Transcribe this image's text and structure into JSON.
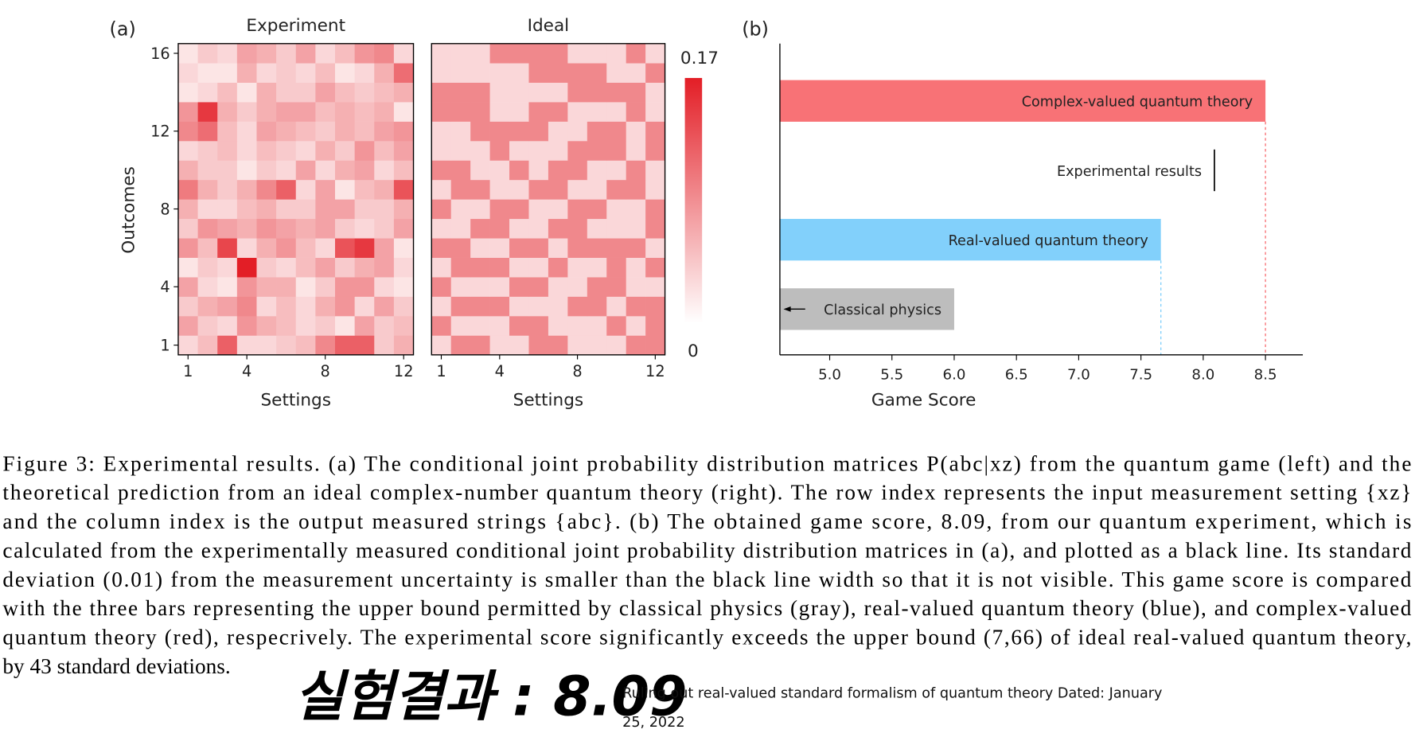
{
  "chart_data": [
    {
      "type": "heatmap",
      "panel_label": "(a)",
      "title": "Experiment",
      "xlabel": "Settings",
      "ylabel": "Outcomes",
      "xlim": [
        0.5,
        12.5
      ],
      "ylim": [
        0.5,
        16.5
      ],
      "xticks": [
        1,
        4,
        8,
        12
      ],
      "yticks": [
        1,
        4,
        8,
        12,
        16
      ],
      "clim": [
        0,
        0.17
      ],
      "cmap": [
        "#ffffff",
        "#e31e26"
      ],
      "values": [
        [
          0.03,
          0.05,
          0.12,
          0.03,
          0.03,
          0.04,
          0.05,
          0.09,
          0.12,
          0.12,
          0.04,
          0.06
        ],
        [
          0.07,
          0.04,
          0.03,
          0.08,
          0.06,
          0.05,
          0.03,
          0.04,
          0.02,
          0.07,
          0.04,
          0.05
        ],
        [
          0.04,
          0.06,
          0.07,
          0.09,
          0.03,
          0.05,
          0.03,
          0.06,
          0.08,
          0.03,
          0.07,
          0.04
        ],
        [
          0.07,
          0.03,
          0.02,
          0.08,
          0.06,
          0.06,
          0.02,
          0.04,
          0.08,
          0.08,
          0.03,
          0.02
        ],
        [
          0.02,
          0.04,
          0.03,
          0.17,
          0.04,
          0.03,
          0.05,
          0.07,
          0.04,
          0.06,
          0.07,
          0.03
        ],
        [
          0.08,
          0.05,
          0.14,
          0.03,
          0.06,
          0.08,
          0.05,
          0.03,
          0.13,
          0.15,
          0.07,
          0.02
        ],
        [
          0.04,
          0.08,
          0.07,
          0.06,
          0.08,
          0.07,
          0.06,
          0.07,
          0.04,
          0.03,
          0.04,
          0.07
        ],
        [
          0.06,
          0.03,
          0.03,
          0.05,
          0.06,
          0.04,
          0.04,
          0.07,
          0.07,
          0.04,
          0.04,
          0.06
        ],
        [
          0.1,
          0.06,
          0.04,
          0.06,
          0.09,
          0.12,
          0.03,
          0.07,
          0.02,
          0.05,
          0.06,
          0.13
        ],
        [
          0.06,
          0.04,
          0.04,
          0.02,
          0.04,
          0.03,
          0.07,
          0.03,
          0.06,
          0.07,
          0.03,
          0.05
        ],
        [
          0.03,
          0.04,
          0.05,
          0.03,
          0.05,
          0.04,
          0.03,
          0.06,
          0.04,
          0.08,
          0.05,
          0.07
        ],
        [
          0.09,
          0.11,
          0.05,
          0.03,
          0.07,
          0.06,
          0.05,
          0.04,
          0.06,
          0.05,
          0.07,
          0.08
        ],
        [
          0.08,
          0.15,
          0.06,
          0.04,
          0.06,
          0.07,
          0.07,
          0.05,
          0.06,
          0.05,
          0.06,
          0.02
        ],
        [
          0.02,
          0.03,
          0.05,
          0.02,
          0.06,
          0.04,
          0.04,
          0.07,
          0.05,
          0.04,
          0.05,
          0.06
        ],
        [
          0.03,
          0.02,
          0.02,
          0.06,
          0.03,
          0.04,
          0.03,
          0.05,
          0.02,
          0.03,
          0.06,
          0.11
        ],
        [
          0.02,
          0.04,
          0.03,
          0.07,
          0.06,
          0.04,
          0.07,
          0.03,
          0.05,
          0.08,
          0.09,
          0.03
        ]
      ]
    },
    {
      "type": "heatmap",
      "title": "Ideal",
      "xlabel": "Settings",
      "xlim": [
        0.5,
        12.5
      ],
      "ylim": [
        0.5,
        16.5
      ],
      "xticks": [
        1,
        4,
        8,
        12
      ],
      "clim": [
        0,
        0.17
      ],
      "cmap": [
        "#ffffff",
        "#e31e26"
      ],
      "colorbar_ticks": [
        0,
        0.17
      ],
      "values": [
        [
          0.03,
          0.09,
          0.09,
          0.03,
          0.03,
          0.09,
          0.09,
          0.03,
          0.03,
          0.03,
          0.09,
          0.09
        ],
        [
          0.09,
          0.03,
          0.03,
          0.03,
          0.09,
          0.09,
          0.03,
          0.03,
          0.03,
          0.09,
          0.03,
          0.09
        ],
        [
          0.03,
          0.09,
          0.09,
          0.09,
          0.03,
          0.03,
          0.03,
          0.09,
          0.09,
          0.03,
          0.09,
          0.09
        ],
        [
          0.09,
          0.03,
          0.03,
          0.03,
          0.09,
          0.09,
          0.03,
          0.03,
          0.09,
          0.09,
          0.03,
          0.03
        ],
        [
          0.03,
          0.09,
          0.09,
          0.09,
          0.03,
          0.03,
          0.09,
          0.03,
          0.03,
          0.09,
          0.03,
          0.09
        ],
        [
          0.09,
          0.09,
          0.03,
          0.03,
          0.09,
          0.09,
          0.03,
          0.09,
          0.09,
          0.09,
          0.09,
          0.03
        ],
        [
          0.03,
          0.03,
          0.09,
          0.09,
          0.03,
          0.03,
          0.09,
          0.09,
          0.03,
          0.03,
          0.03,
          0.09
        ],
        [
          0.09,
          0.03,
          0.03,
          0.09,
          0.09,
          0.03,
          0.03,
          0.09,
          0.09,
          0.03,
          0.03,
          0.09
        ],
        [
          0.03,
          0.09,
          0.09,
          0.03,
          0.03,
          0.09,
          0.09,
          0.03,
          0.03,
          0.09,
          0.09,
          0.03
        ],
        [
          0.09,
          0.09,
          0.03,
          0.03,
          0.09,
          0.03,
          0.09,
          0.09,
          0.03,
          0.03,
          0.09,
          0.03
        ],
        [
          0.03,
          0.03,
          0.03,
          0.09,
          0.03,
          0.03,
          0.03,
          0.09,
          0.09,
          0.09,
          0.03,
          0.09
        ],
        [
          0.03,
          0.03,
          0.09,
          0.09,
          0.09,
          0.09,
          0.03,
          0.03,
          0.09,
          0.09,
          0.03,
          0.09
        ],
        [
          0.09,
          0.09,
          0.09,
          0.03,
          0.03,
          0.09,
          0.09,
          0.03,
          0.03,
          0.03,
          0.09,
          0.03
        ],
        [
          0.09,
          0.09,
          0.09,
          0.03,
          0.03,
          0.03,
          0.03,
          0.09,
          0.09,
          0.09,
          0.09,
          0.03
        ],
        [
          0.03,
          0.03,
          0.03,
          0.03,
          0.03,
          0.09,
          0.09,
          0.09,
          0.09,
          0.03,
          0.03,
          0.09
        ],
        [
          0.03,
          0.03,
          0.03,
          0.09,
          0.09,
          0.09,
          0.09,
          0.03,
          0.03,
          0.03,
          0.09,
          0.03
        ]
      ]
    },
    {
      "type": "barh",
      "panel_label": "(b)",
      "xlabel": "Game Score",
      "categories": [
        "Complex-valued quantum theory",
        "Experimental results",
        "Real-valued quantum theory",
        "Classical physics"
      ],
      "values": [
        8.5,
        8.09,
        7.66,
        6.0
      ],
      "colors": [
        "#f87276",
        "#111111",
        "#82d0fb",
        "#bdbdbd"
      ],
      "marks": [
        "bar",
        "line",
        "bar",
        "bar"
      ],
      "dashed_guides": [
        true,
        false,
        true,
        false
      ],
      "xlim": [
        4.6,
        8.8
      ],
      "xticks": [
        {
          "value": 5,
          "label": "5.0"
        },
        {
          "value": 5.5,
          "label": "5.5"
        },
        {
          "value": 6,
          "label": "6.0"
        },
        {
          "value": 6.5,
          "label": "6.5"
        },
        {
          "value": 7,
          "label": "7.0"
        },
        {
          "value": 7.5,
          "label": "7.5"
        },
        {
          "value": 8,
          "label": "8.0"
        },
        {
          "value": 8.5,
          "label": "8.5"
        }
      ]
    }
  ],
  "caption": {
    "lines": [
      "Figure 3: Experimental results. (a) The conditional joint probability distribution matrices P(abc|xz) from the quantum game (left) and the",
      "theoretical prediction from an ideal complex-number quantum theory (right). The row index represents the input measurement setting {xz}",
      "and the column index is the output measured strings {abc}. (b) The obtained game score, 8.09, from our quantum experiment, which is",
      "calculated from the experimentally measured conditional joint probability distribution matrices in (a), and plotted as a black line. Its standard",
      "deviation (0.01) from the measurement uncertainty is smaller than the black line width so that it is not visible. This game score is compared",
      "with the three bars representing the upper bound permitted by classical physics (gray), real-valued quantum theory (blue), and complex-valued",
      "quantum theory (red), respecrively. The experimental score significantly exceeds the upper bound (7,66) of ideal real-valued quantum theory,",
      "by 43 standard deviations."
    ]
  },
  "handwriting": "실험결과 : 8.09",
  "note": {
    "lines": [
      "Ruling out real-valued standard formalism of quantum theory Dated: January",
      "25, 2022"
    ]
  }
}
